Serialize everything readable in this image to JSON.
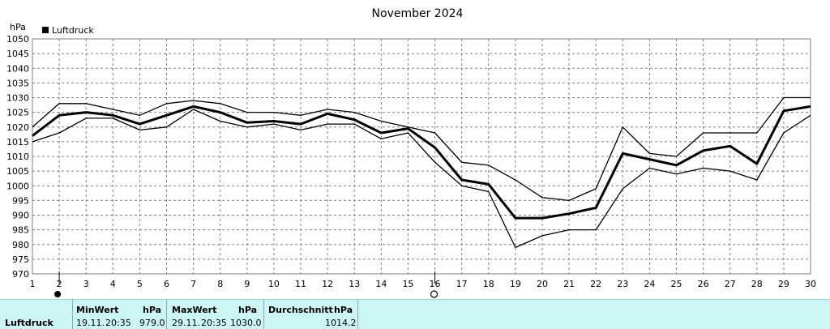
{
  "chart_data": {
    "type": "line",
    "title": "November 2024",
    "ylabel": "hPa",
    "legend": "Luftdruck",
    "legend_position": "top-left",
    "grid": true,
    "ylim": [
      970,
      1050
    ],
    "yticks": [
      970,
      975,
      980,
      985,
      990,
      995,
      1000,
      1005,
      1010,
      1015,
      1020,
      1025,
      1030,
      1035,
      1040,
      1045,
      1050
    ],
    "x": [
      1,
      2,
      3,
      4,
      5,
      6,
      7,
      8,
      9,
      10,
      11,
      12,
      13,
      14,
      15,
      16,
      17,
      18,
      19,
      20,
      21,
      22,
      23,
      24,
      25,
      26,
      27,
      28,
      29,
      30
    ],
    "series": [
      {
        "role": "max",
        "values": [
          1020,
          1028,
          1028,
          1026,
          1024,
          1028,
          1029,
          1028,
          1025,
          1025,
          1024,
          1026,
          1025,
          1022,
          1020,
          1018,
          1008,
          1007,
          1002,
          996,
          995,
          999,
          1020,
          1011,
          1010,
          1018,
          1018,
          1018,
          1030,
          1030
        ]
      },
      {
        "role": "mean",
        "values": [
          1017,
          1024,
          1025,
          1024,
          1021,
          1024,
          1027,
          1025,
          1021.5,
          1022,
          1021,
          1024.5,
          1022.5,
          1018,
          1019.5,
          1013,
          1002,
          1000.5,
          989,
          989,
          990.5,
          992.5,
          1011,
          1009,
          1007,
          1012,
          1013.5,
          1007.5,
          1025.5,
          1027
        ]
      },
      {
        "role": "min",
        "values": [
          1015,
          1018,
          1023,
          1023,
          1019,
          1020,
          1026,
          1022,
          1020,
          1021,
          1019,
          1021,
          1021,
          1016,
          1018,
          1008,
          1000,
          998,
          979,
          983,
          985,
          985,
          999,
          1006,
          1004,
          1006,
          1005,
          1002,
          1018,
          1024
        ]
      }
    ],
    "markers": [
      {
        "x": 2,
        "symbol": "full-moon"
      },
      {
        "x": 16,
        "symbol": "new-moon"
      }
    ]
  },
  "stats": {
    "row_label": "Luftdruck",
    "min": {
      "header": "MinWert",
      "unit": "hPa",
      "date": "19.11.",
      "time": "20:35",
      "value": "979.0"
    },
    "max": {
      "header": "MaxWert",
      "unit": "hPa",
      "date": "29.11.",
      "time": "20:35",
      "value": "1030.0"
    },
    "avg": {
      "header": "Durchschnitt",
      "unit": "hPa",
      "value": "1014.2"
    }
  },
  "colors": {
    "line": "#000000",
    "grid": "#808080",
    "stats_bg": "#ccf5f5"
  }
}
